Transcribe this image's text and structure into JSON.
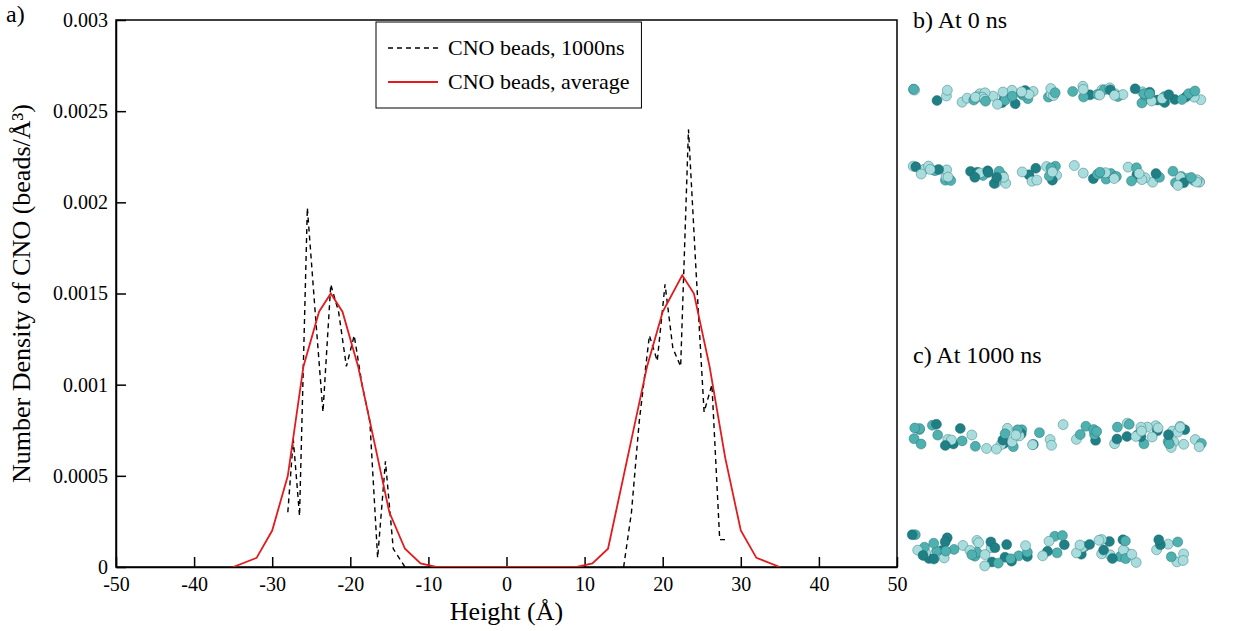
{
  "chart_data": {
    "type": "line",
    "panel_label": "a)",
    "x_label": "Height (Å)",
    "y_label": "Number Density of CNO (beads/Å³)",
    "xlim": [
      -50,
      50
    ],
    "xticks": [
      -50,
      -40,
      -30,
      -20,
      -10,
      0,
      10,
      20,
      30,
      40,
      50
    ],
    "ylim": [
      0,
      0.003
    ],
    "yticks": [
      0,
      0.0005,
      0.001,
      0.0015,
      0.002,
      0.0025,
      0.003
    ],
    "legend": "top",
    "grid": false,
    "series": [
      {
        "name": "CNO beads, 1000ns",
        "color": "#000000",
        "line_style": "dashed",
        "x": [
          -28,
          -27.3,
          -26.5,
          -25.5,
          -24.5,
          -23.5,
          -22.5,
          -21.5,
          -20.5,
          -19.5,
          -18.5,
          -17.5,
          -16.5,
          -15.5,
          -14.5,
          -13,
          0,
          15,
          16,
          17,
          18.3,
          19.3,
          20.3,
          21.3,
          22.3,
          23.3,
          24.3,
          25.3,
          26.3,
          27.3,
          28.5
        ],
        "values": [
          0.0003,
          0.0007,
          0.00028,
          0.00197,
          0.0014,
          0.00085,
          0.00155,
          0.0014,
          0.0011,
          0.00127,
          0.001,
          0.0008,
          5e-05,
          0.00058,
          0.0001,
          0,
          null,
          0,
          0.0003,
          0.0008,
          0.00127,
          0.00113,
          0.00155,
          0.0012,
          0.0011,
          0.0024,
          0.0016,
          0.00085,
          0.001,
          0.00015,
          0.00015
        ]
      },
      {
        "name": "CNO beads, average",
        "color": "#e41a1c",
        "line_style": "solid",
        "x": [
          -35,
          -32,
          -30,
          -28,
          -26,
          -24,
          -22.5,
          -21,
          -19,
          -17,
          -15,
          -13,
          -11,
          -9,
          9,
          11,
          13,
          14,
          16,
          18,
          20,
          22.5,
          24,
          26,
          28,
          30,
          32,
          35
        ],
        "values": [
          0,
          5e-05,
          0.0002,
          0.0005,
          0.0011,
          0.0014,
          0.0015,
          0.0014,
          0.0011,
          0.0007,
          0.0003,
          0.0001,
          2e-05,
          0,
          0,
          2e-05,
          0.0001,
          0.0003,
          0.0007,
          0.0011,
          0.0014,
          0.0016,
          0.0015,
          0.0011,
          0.0006,
          0.0002,
          5e-05,
          0
        ]
      }
    ]
  },
  "snapshots": [
    {
      "label": "b) At 0 ns"
    },
    {
      "label": "c) At 1000 ns"
    }
  ]
}
